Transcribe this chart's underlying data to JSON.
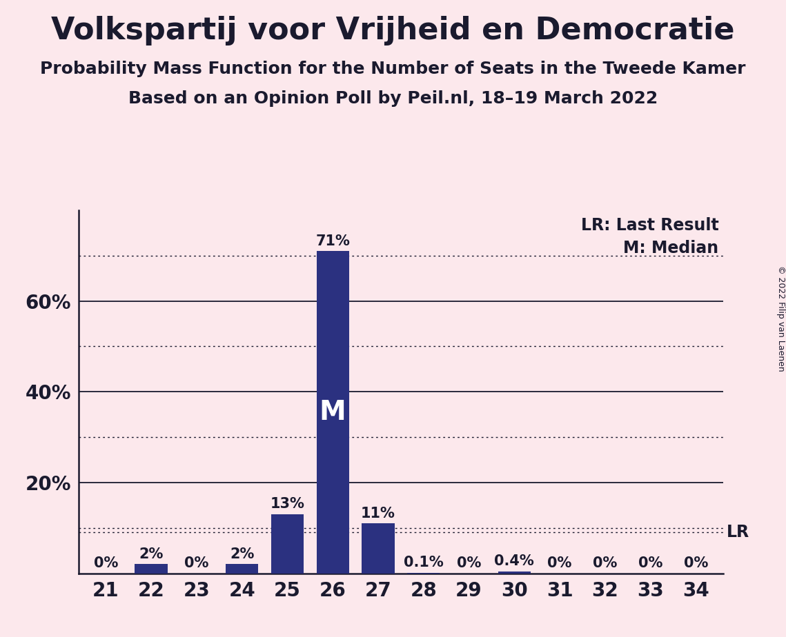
{
  "title": "Volkspartij voor Vrijheid en Democratie",
  "subtitle1": "Probability Mass Function for the Number of Seats in the Tweede Kamer",
  "subtitle2": "Based on an Opinion Poll by Peil.nl, 18–19 March 2022",
  "copyright": "© 2022 Filip van Laenen",
  "categories": [
    21,
    22,
    23,
    24,
    25,
    26,
    27,
    28,
    29,
    30,
    31,
    32,
    33,
    34
  ],
  "values": [
    0.0,
    2.0,
    0.0,
    2.0,
    13.0,
    71.0,
    11.0,
    0.1,
    0.0,
    0.4,
    0.0,
    0.0,
    0.0,
    0.0
  ],
  "labels": [
    "0%",
    "2%",
    "0%",
    "2%",
    "13%",
    "71%",
    "11%",
    "0.1%",
    "0%",
    "0.4%",
    "0%",
    "0%",
    "0%",
    "0%"
  ],
  "bar_color": "#2b3180",
  "background_color": "#fce8ec",
  "median_seat": 26,
  "lr_value": 9.0,
  "ylabel_ticks": [
    20,
    40,
    60
  ],
  "dotted_lines": [
    10,
    30,
    50,
    70
  ],
  "solid_lines": [
    20,
    40,
    60
  ],
  "ylim": [
    0,
    80
  ],
  "title_fontsize": 32,
  "subtitle_fontsize": 18,
  "tick_fontsize": 20,
  "label_fontsize": 15,
  "legend_fontsize": 17
}
